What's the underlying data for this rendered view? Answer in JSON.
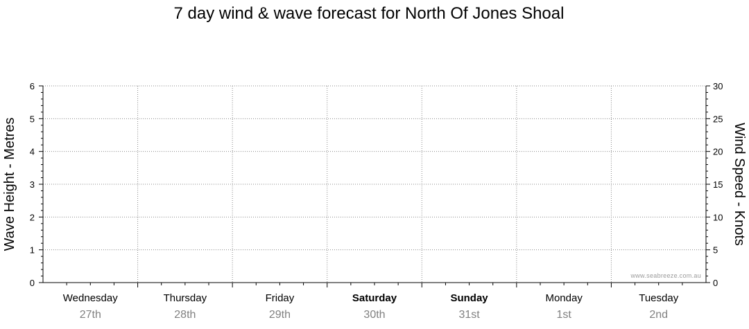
{
  "title": "7 day wind & wave forecast for North Of Jones Shoal",
  "watermark": "www.seabreeze.com.au",
  "chart_data": {
    "type": "line",
    "title": "7 day wind & wave forecast for North Of Jones Shoal",
    "y_left": {
      "label": "Wave Height - Metres",
      "range": [
        0,
        6
      ],
      "ticks": [
        "0",
        "1",
        "2",
        "3",
        "4",
        "5",
        "6"
      ]
    },
    "y_right": {
      "label": "Wind Speed - Knots",
      "range": [
        0,
        30
      ],
      "ticks": [
        "0",
        "5",
        "10",
        "15",
        "20",
        "25",
        "30"
      ]
    },
    "days": [
      {
        "day": "Wednesday",
        "date": "27th",
        "bold": false
      },
      {
        "day": "Thursday",
        "date": "28th",
        "bold": false
      },
      {
        "day": "Friday",
        "date": "29th",
        "bold": false
      },
      {
        "day": "Saturday",
        "date": "30th",
        "bold": true
      },
      {
        "day": "Sunday",
        "date": "31st",
        "bold": true
      },
      {
        "day": "Monday",
        "date": "1st",
        "bold": false
      },
      {
        "day": "Tuesday",
        "date": "2nd",
        "bold": false
      }
    ],
    "grid": true,
    "series": []
  }
}
